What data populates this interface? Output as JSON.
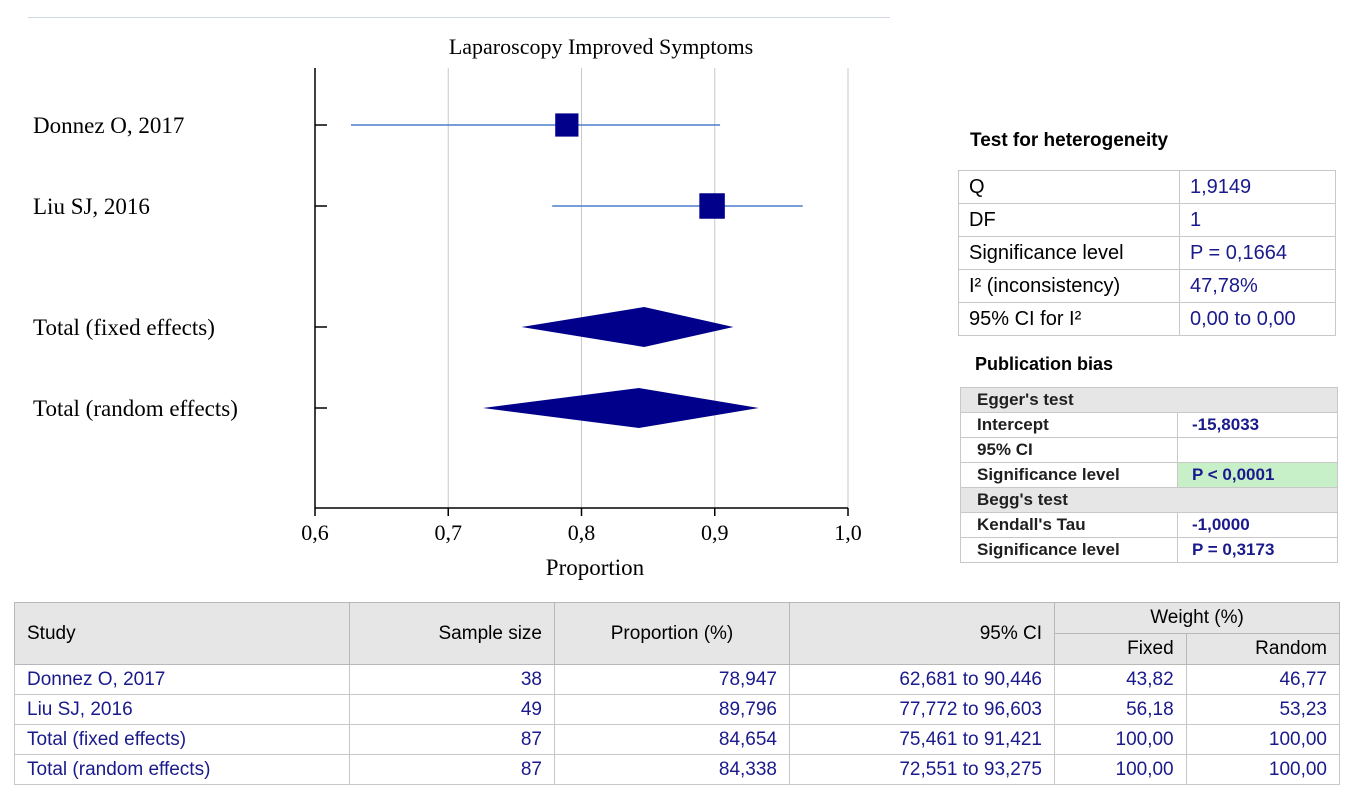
{
  "chart_data": {
    "type": "forest",
    "title": "Laparoscopy Improved Symptoms",
    "xlabel": "Proportion",
    "xlim": [
      0.6,
      1.0
    ],
    "xticks": [
      "0,6",
      "0,7",
      "0,8",
      "0,9",
      "1,0"
    ],
    "grid": true,
    "studies": [
      {
        "label": "Donnez O, 2017",
        "estimate": 0.789,
        "lower": 0.627,
        "upper": 0.904,
        "weight": 43.82,
        "marker": "square"
      },
      {
        "label": "Liu SJ, 2016",
        "estimate": 0.898,
        "lower": 0.778,
        "upper": 0.966,
        "weight": 56.18,
        "marker": "square"
      },
      {
        "label": "Total (fixed effects)",
        "estimate": 0.847,
        "lower": 0.755,
        "upper": 0.914,
        "marker": "diamond"
      },
      {
        "label": "Total (random effects)",
        "estimate": 0.843,
        "lower": 0.726,
        "upper": 0.933,
        "marker": "diamond"
      }
    ],
    "colors": {
      "marker": "#00008b",
      "ci_line": "#4a7fc9",
      "axis": "#000000",
      "grid": "#c8c8c8"
    }
  },
  "heterogeneity": {
    "title": "Test for heterogeneity",
    "rows": [
      {
        "label": "Q",
        "value": "1,9149"
      },
      {
        "label": "DF",
        "value": "1"
      },
      {
        "label": "Significance level",
        "value": "P = 0,1664"
      },
      {
        "label": "I² (inconsistency)",
        "value": "47,78%"
      },
      {
        "label": "95% CI for I²",
        "value": "0,00 to 0,00"
      }
    ]
  },
  "publication_bias": {
    "title": "Publication bias",
    "egger": {
      "title": "Egger's test",
      "rows": [
        {
          "label": "Intercept",
          "value": "-15,8033"
        },
        {
          "label": "95% CI",
          "value": ""
        },
        {
          "label": "Significance level",
          "value": "P < 0,0001"
        }
      ]
    },
    "begg": {
      "title": "Begg's test",
      "rows": [
        {
          "label": "Kendall's Tau",
          "value": "-1,0000"
        },
        {
          "label": "Significance level",
          "value": "P = 0,3173"
        }
      ]
    },
    "highlight_color": "#c8f0c8"
  },
  "table": {
    "headers": {
      "study": "Study",
      "sample_size": "Sample size",
      "proportion": "Proportion (%)",
      "ci": "95% CI",
      "weight": "Weight (%)",
      "fixed": "Fixed",
      "random": "Random"
    },
    "rows": [
      {
        "study": "Donnez O, 2017",
        "sample_size": "38",
        "proportion": "78,947",
        "ci": "62,681 to 90,446",
        "fixed": "43,82",
        "random": "46,77"
      },
      {
        "study": "Liu SJ, 2016",
        "sample_size": "49",
        "proportion": "89,796",
        "ci": "77,772 to 96,603",
        "fixed": "56,18",
        "random": "53,23"
      },
      {
        "study": "Total (fixed effects)",
        "sample_size": "87",
        "proportion": "84,654",
        "ci": "75,461 to 91,421",
        "fixed": "100,00",
        "random": "100,00"
      },
      {
        "study": "Total (random effects)",
        "sample_size": "87",
        "proportion": "84,338",
        "ci": "72,551 to 93,275",
        "fixed": "100,00",
        "random": "100,00"
      }
    ]
  }
}
